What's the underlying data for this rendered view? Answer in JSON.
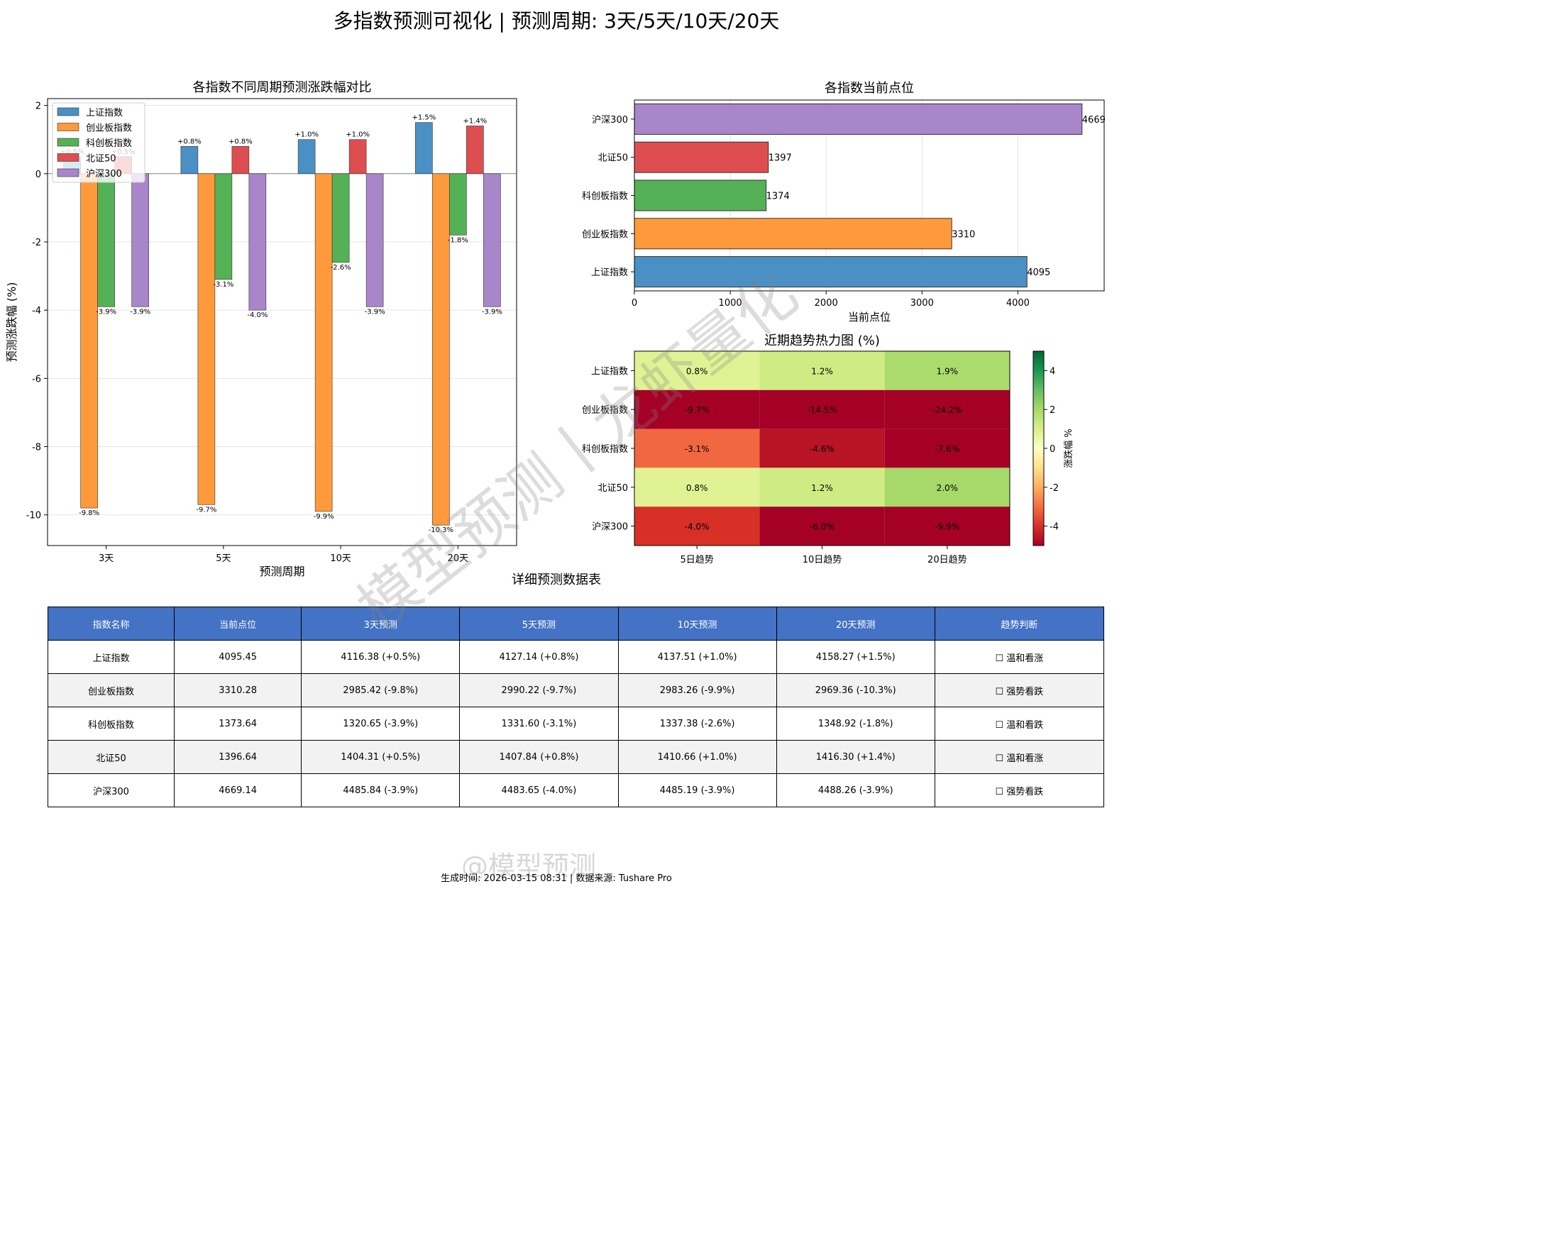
{
  "title": "多指数预测可视化 | 预测周期: 3天/5天/10天/20天",
  "colors": {
    "上证指数": "#4a90c4",
    "创业板指数": "#ff9a3c",
    "科创板指数": "#55b155",
    "北证50": "#de4e50",
    "沪深300": "#a985c9",
    "header_blue": "#4472c4"
  },
  "chart_data": [
    {
      "type": "bar",
      "title": "各指数不同周期预测涨跌幅对比",
      "xlabel": "预测周期",
      "ylabel": "预测涨跌幅 (%)",
      "categories": [
        "3天",
        "5天",
        "10天",
        "20天"
      ],
      "ylim": [
        -10.9,
        2.2
      ],
      "yticks": [
        2,
        0,
        -2,
        -4,
        -6,
        -8,
        -10
      ],
      "grid": true,
      "legend": "top-left",
      "series": [
        {
          "name": "上证指数",
          "values": [
            0.5,
            0.8,
            1.0,
            1.5
          ]
        },
        {
          "name": "创业板指数",
          "values": [
            -9.8,
            -9.7,
            -9.9,
            -10.3
          ]
        },
        {
          "name": "科创板指数",
          "values": [
            -3.9,
            -3.1,
            -2.6,
            -1.8
          ]
        },
        {
          "name": "北证50",
          "values": [
            0.5,
            0.8,
            1.0,
            1.4
          ]
        },
        {
          "name": "沪深300",
          "values": [
            -3.9,
            -4.0,
            -3.9,
            -3.9
          ]
        }
      ]
    },
    {
      "type": "bar",
      "orientation": "horizontal",
      "title": "各指数当前点位",
      "xlabel": "当前点位",
      "categories": [
        "沪深300",
        "北证50",
        "科创板指数",
        "创业板指数",
        "上证指数"
      ],
      "values": [
        4669,
        1397,
        1374,
        3310,
        4095
      ],
      "xlim": [
        0,
        4900
      ],
      "xticks": [
        0,
        1000,
        2000,
        3000,
        4000
      ],
      "grid": true
    },
    {
      "type": "heatmap",
      "title": "近期趋势热力图 (%)",
      "rows": [
        "上证指数",
        "创业板指数",
        "科创板指数",
        "北证50",
        "沪深300"
      ],
      "columns": [
        "5日趋势",
        "10日趋势",
        "20日趋势"
      ],
      "values": [
        [
          0.8,
          1.2,
          1.9
        ],
        [
          -9.7,
          -14.5,
          -24.2
        ],
        [
          -3.1,
          -4.6,
          -7.6
        ],
        [
          0.8,
          1.2,
          2.0
        ],
        [
          -4.0,
          -6.0,
          -9.9
        ]
      ],
      "vrange": [
        -5,
        5
      ],
      "colorbar_label": "涨跌幅 %",
      "colorbar_ticks": [
        4,
        2,
        0,
        -2,
        -4
      ]
    }
  ],
  "table": {
    "title": "详细预测数据表",
    "headers": [
      "指数名称",
      "当前点位",
      "3天预测",
      "5天预测",
      "10天预测",
      "20天预测",
      "趋势判断"
    ],
    "rows": [
      [
        "上证指数",
        "4095.45",
        "4116.38 (+0.5%)",
        "4127.14 (+0.8%)",
        "4137.51 (+1.0%)",
        "4158.27 (+1.5%)",
        "☐ 温和看涨"
      ],
      [
        "创业板指数",
        "3310.28",
        "2985.42 (-9.8%)",
        "2990.22 (-9.7%)",
        "2983.26 (-9.9%)",
        "2969.36 (-10.3%)",
        "☐ 强势看跌"
      ],
      [
        "科创板指数",
        "1373.64",
        "1320.65 (-3.9%)",
        "1331.60 (-3.1%)",
        "1337.38 (-2.6%)",
        "1348.92 (-1.8%)",
        "☐ 温和看跌"
      ],
      [
        "北证50",
        "1396.64",
        "1404.31 (+0.5%)",
        "1407.84 (+0.8%)",
        "1410.66 (+1.0%)",
        "1416.30 (+1.4%)",
        "☐ 温和看涨"
      ],
      [
        "沪深300",
        "4669.14",
        "4485.84 (-3.9%)",
        "4483.65 (-4.0%)",
        "4485.19 (-3.9%)",
        "4488.26 (-3.9%)",
        "☐ 强势看跌"
      ]
    ]
  },
  "footer": "生成时间: 2026-03-15 08:31 | 数据来源: Tushare Pro",
  "watermark": "模型预测丨龙虾量化",
  "weibo_mark": "@模型预测"
}
